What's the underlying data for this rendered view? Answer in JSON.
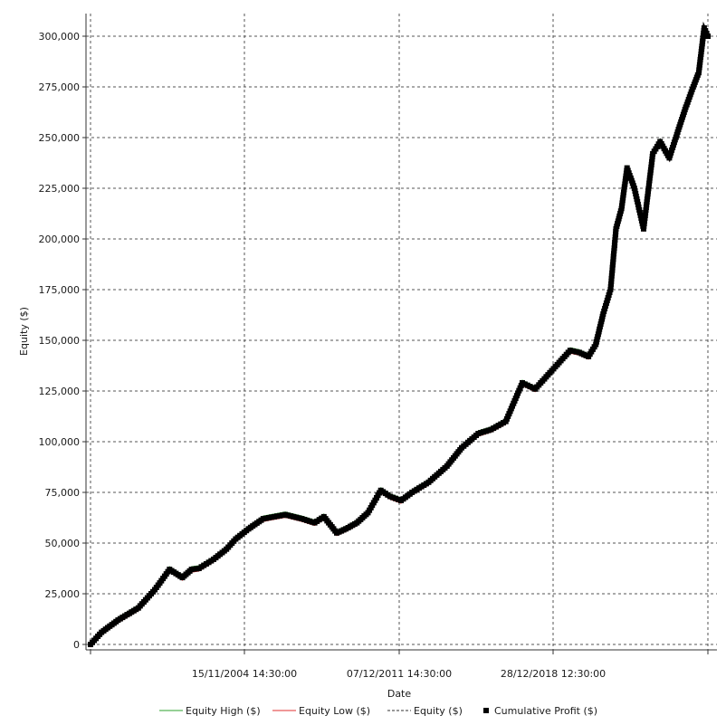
{
  "chart_data": {
    "type": "line",
    "title": "",
    "xlabel": "Date",
    "ylabel": "Equity ($)",
    "ylim": [
      0,
      305000
    ],
    "grid": true,
    "legend_position": "bottom",
    "x_tick_labels": [
      "15/11/2004 14:30:00",
      "07/12/2011 14:30:00",
      "28/12/2018 12:30:00"
    ],
    "y_ticks": [
      {
        "value": 0,
        "label": "0"
      },
      {
        "value": 25000,
        "label": "25,000"
      },
      {
        "value": 50000,
        "label": "50,000"
      },
      {
        "value": 75000,
        "label": "75,000"
      },
      {
        "value": 100000,
        "label": "100,000"
      },
      {
        "value": 125000,
        "label": "125,000"
      },
      {
        "value": 150000,
        "label": "150,000"
      },
      {
        "value": 175000,
        "label": "175,000"
      },
      {
        "value": 200000,
        "label": "200,000"
      },
      {
        "value": 225000,
        "label": "225,000"
      },
      {
        "value": 250000,
        "label": "250,000"
      },
      {
        "value": 275000,
        "label": "275,000"
      },
      {
        "value": 300000,
        "label": "300,000"
      }
    ],
    "x_range": [
      "1997-11",
      "2025-11"
    ],
    "series": [
      {
        "name": "Equity High ($)",
        "color": "#2ca02c",
        "style": "solid"
      },
      {
        "name": "Equity Low ($)",
        "color": "#e03030",
        "style": "solid"
      },
      {
        "name": "Equity ($)",
        "color": "#333333",
        "style": "dashed"
      },
      {
        "name": "Cumulative Profit ($)",
        "color": "#000000",
        "style": "square-markers",
        "x": [
          "1997-11",
          "1998-05",
          "1999-02",
          "2000-01",
          "2000-10",
          "2001-06",
          "2002-01",
          "2002-06",
          "2002-10",
          "2003-06",
          "2004-01",
          "2004-06",
          "2005-01",
          "2005-09",
          "2006-09",
          "2007-06",
          "2008-01",
          "2008-06",
          "2009-01",
          "2009-06",
          "2009-12",
          "2010-06",
          "2011-01",
          "2011-06",
          "2011-12",
          "2012-06",
          "2013-03",
          "2014-01",
          "2014-09",
          "2015-06",
          "2016-01",
          "2016-09",
          "2017-06",
          "2018-01",
          "2018-09",
          "2019-03",
          "2019-08",
          "2020-01",
          "2020-06",
          "2020-10",
          "2021-02",
          "2021-06",
          "2021-09",
          "2021-12",
          "2022-03",
          "2022-07",
          "2022-12",
          "2023-05",
          "2023-09",
          "2024-02",
          "2024-07",
          "2024-11",
          "2025-03",
          "2025-06",
          "2025-09",
          "2025-11"
        ],
        "values": [
          0,
          6000,
          12000,
          18000,
          27000,
          37000,
          33000,
          37000,
          37500,
          42000,
          47000,
          52000,
          57000,
          62000,
          64000,
          62000,
          60000,
          63000,
          55000,
          57000,
          60000,
          65000,
          76000,
          73000,
          71000,
          75000,
          80000,
          88000,
          97000,
          104000,
          106000,
          110000,
          129000,
          126000,
          134000,
          140000,
          145000,
          144000,
          142000,
          148000,
          163000,
          175000,
          205000,
          215000,
          235000,
          225000,
          205000,
          242000,
          248000,
          240000,
          254000,
          265000,
          275000,
          282000,
          304000,
          300000
        ]
      }
    ]
  }
}
